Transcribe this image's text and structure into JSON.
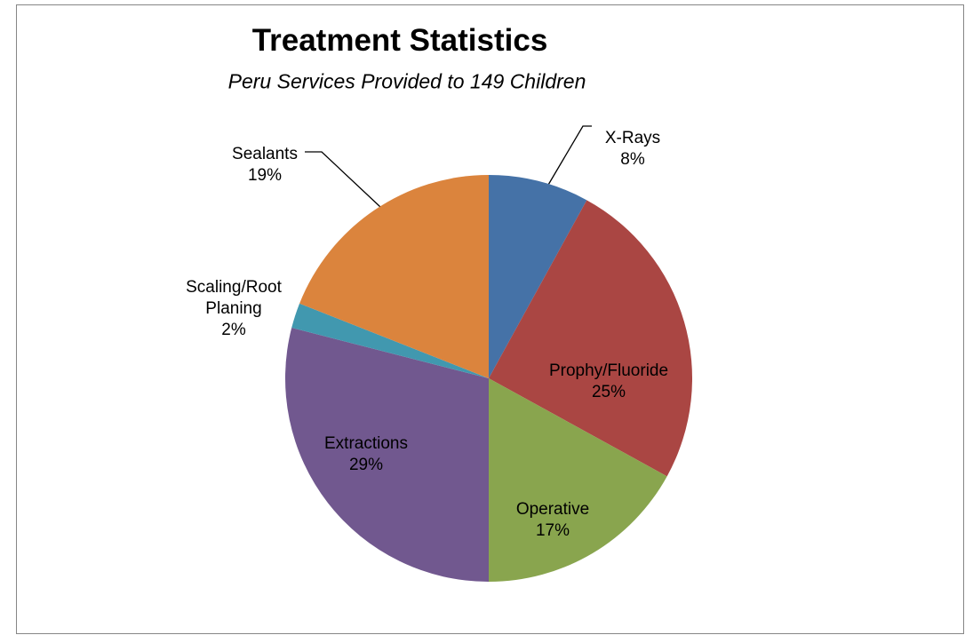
{
  "chart_data": {
    "type": "pie",
    "title": "Treatment Statistics",
    "subtitle": "Peru Services Provided to 149 Children",
    "categories": [
      "X-Rays",
      "Prophy/Fluoride",
      "Operative",
      "Extractions",
      "Scaling/Root Planing",
      "Sealants"
    ],
    "values": [
      8,
      25,
      17,
      29,
      2,
      19
    ],
    "value_labels": [
      "8%",
      "25%",
      "17%",
      "29%",
      "2%",
      "19%"
    ],
    "colors": [
      "#4572a7",
      "#aa4643",
      "#89a54e",
      "#71588f",
      "#4198af",
      "#db843d"
    ]
  }
}
